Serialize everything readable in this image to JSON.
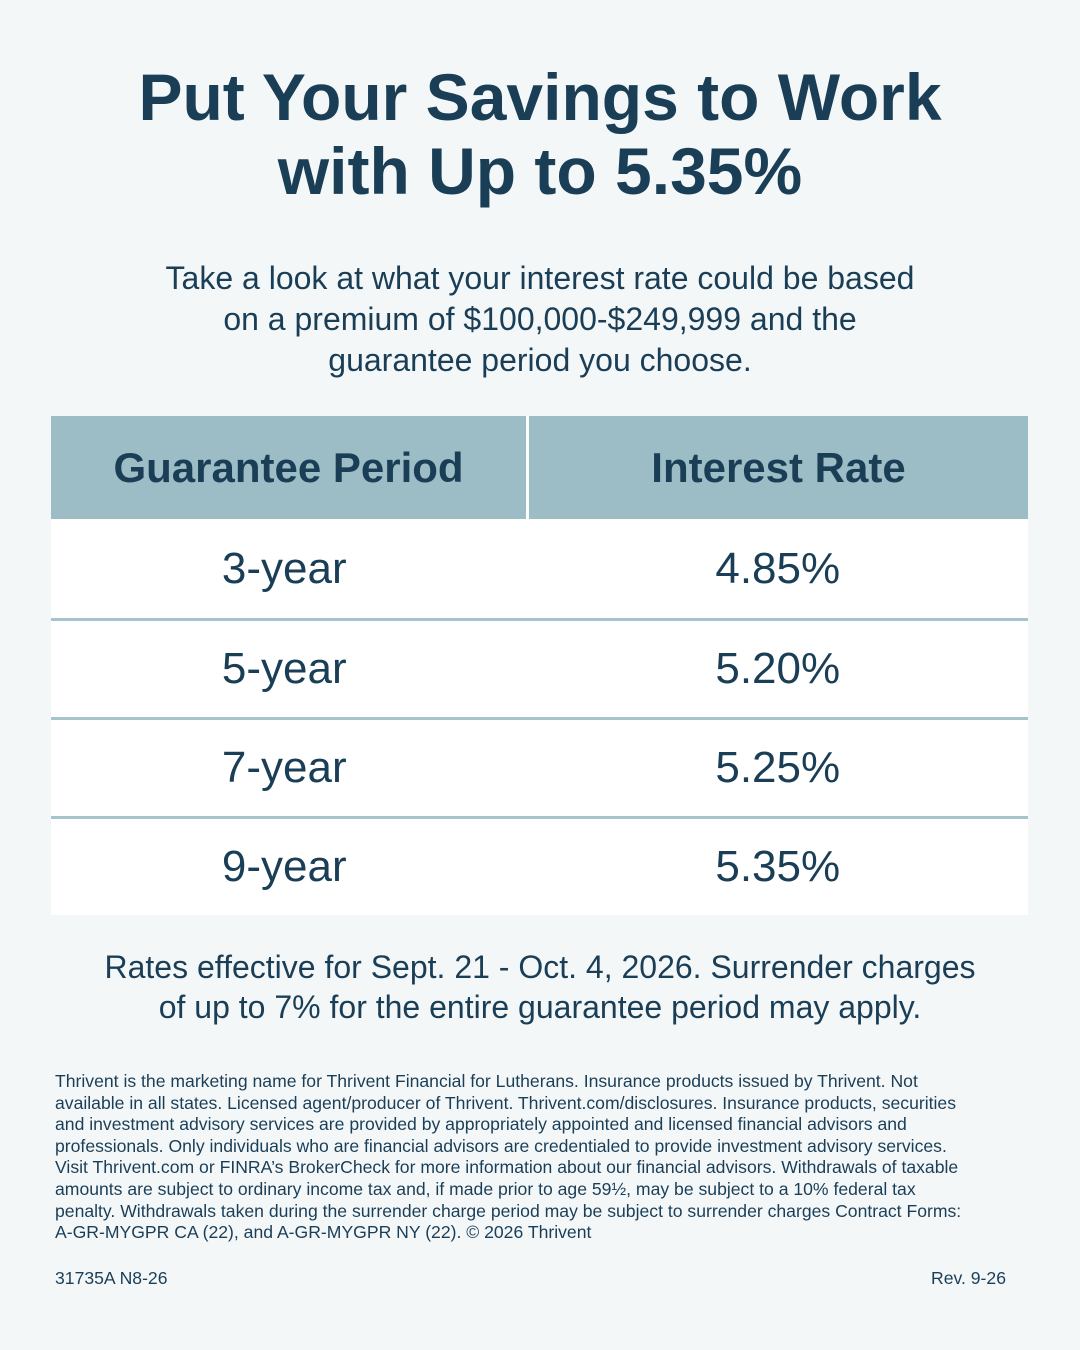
{
  "headline": {
    "line1": "Put Your Savings to Work",
    "line2": "with Up to 5.35%"
  },
  "intro": {
    "line1": "Take a look at what your interest rate could be based",
    "line2": "on a premium of $100,000-$249,999 and the",
    "line3": "guarantee period you choose."
  },
  "table": {
    "headers": [
      "Guarantee Period",
      "Interest Rate"
    ],
    "rows": [
      {
        "period": "3-year",
        "rate": "4.85%"
      },
      {
        "period": "5-year",
        "rate": "5.20%"
      },
      {
        "period": "7-year",
        "rate": "5.25%"
      },
      {
        "period": "9-year",
        "rate": "5.35%"
      }
    ]
  },
  "note": {
    "line1": "Rates effective for Sept. 21 - Oct. 4, 2026. Surrender charges",
    "line2": "of up to 7% for the entire guarantee period may apply."
  },
  "disclosure": {
    "lines": [
      "Thrivent is the marketing name for Thrivent Financial for Lutherans. Insurance products issued by Thrivent. Not",
      "available in all states. Licensed agent/producer of Thrivent. Thrivent.com/disclosures. Insurance products, securities",
      "and investment advisory services are provided by appropriately appointed and licensed financial advisors and",
      "professionals. Only individuals who are financial advisors are credentialed to provide investment advisory services.",
      "Visit Thrivent.com or FINRA’s BrokerCheck for more information about our financial advisors. Withdrawals of taxable",
      "amounts are subject to ordinary income tax and, if made prior to age 59½, may be subject to a 10% federal tax",
      "penalty. Withdrawals taken during the surrender charge period may be subject to surrender charges Contract Forms:",
      "A-GR-MYGPR CA (22), and A-GR-MYGPR NY (22). © 2026 Thrivent"
    ]
  },
  "footer": {
    "code": "31735A N8-26",
    "revision": "Rev. 9-26"
  },
  "colors": {
    "background": "#f3f7f8",
    "text": "#1b3e57",
    "table_header": "#9cbdc5",
    "row_divider": "#a7c3cb"
  }
}
